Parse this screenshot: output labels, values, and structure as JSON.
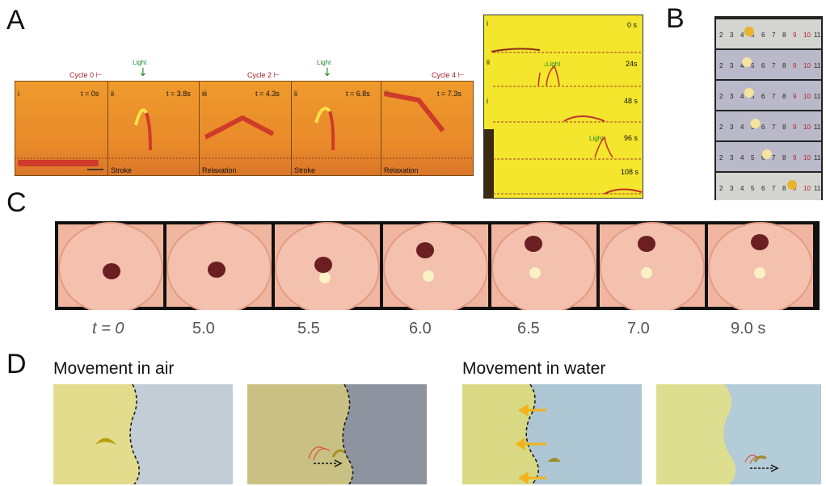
{
  "panels": {
    "a": "A",
    "b": "B",
    "c": "C",
    "d": "D"
  },
  "panel_a": {
    "frames": [
      {
        "roman": "i",
        "time": "t = 0s",
        "phase": ""
      },
      {
        "roman": "ii",
        "time": "t = 3.8s",
        "phase": "Stroke"
      },
      {
        "roman": "iii",
        "time": "t = 4.3s",
        "phase": "Relaxation"
      },
      {
        "roman": "ii",
        "time": "t = 6.8s",
        "phase": "Stroke"
      },
      {
        "roman": "iii",
        "time": "t = 7.3s",
        "phase": "Relaxation"
      }
    ],
    "cycles": [
      "Cycle 0",
      "Cycle 2",
      "Cycle 4"
    ],
    "light": "Light"
  },
  "panel_a2": {
    "rows": [
      {
        "roman": "i",
        "time": "0 s"
      },
      {
        "roman": "ii",
        "time": "24s"
      },
      {
        "roman": "i",
        "time": "48 s"
      },
      {
        "roman": "",
        "time": "96 s"
      },
      {
        "roman": "",
        "time": "108 s"
      }
    ],
    "light": "Light"
  },
  "panel_b": {
    "ruler": [
      "2",
      "3",
      "4",
      "5",
      "6",
      "7",
      "8",
      "9",
      "10",
      "11"
    ],
    "dot_positions": [
      4.6,
      4.4,
      4.6,
      5.2,
      6.3,
      8.7
    ]
  },
  "panel_c": {
    "times": [
      "t = 0",
      "5.0",
      "5.5",
      "6.0",
      "6.5",
      "7.0",
      "9.0 s"
    ]
  },
  "panel_d": {
    "air_title": "Movement in air",
    "water_title": "Movement in water"
  },
  "colors": {
    "orange": "#e88a1f",
    "yellow": "#f3e62c",
    "pink": "#f0b9a2",
    "red": "#c0302a",
    "green": "#1e8a2a"
  }
}
